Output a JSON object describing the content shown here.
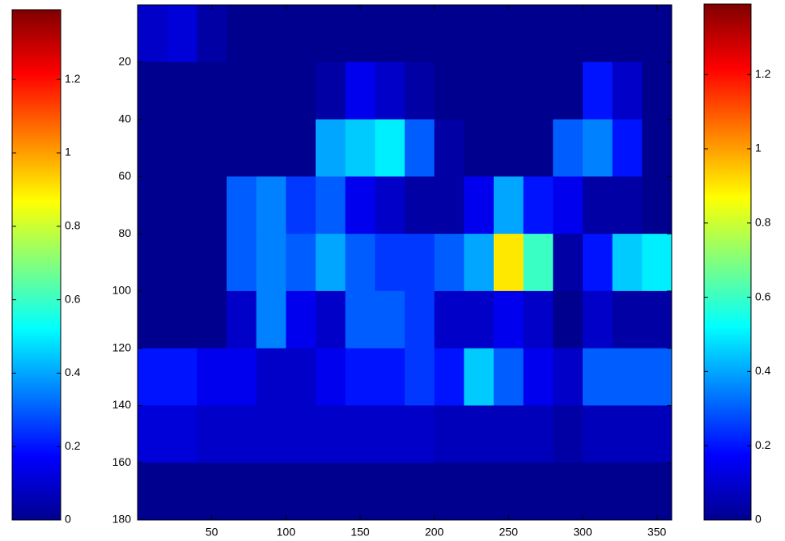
{
  "chart_data": {
    "type": "heatmap",
    "colormap": "jet",
    "xlim": [
      0,
      360
    ],
    "ylim": [
      0,
      180
    ],
    "y_reversed": true,
    "xticks": [
      50,
      100,
      150,
      200,
      250,
      300,
      350
    ],
    "yticks": [
      20,
      40,
      60,
      80,
      100,
      120,
      140,
      160,
      180
    ],
    "z": [
      [
        0.1,
        0.12,
        0.05,
        0.02,
        0.02,
        0.02,
        0.02,
        0.02,
        0.02,
        0.02,
        0.02,
        0.02,
        0.02,
        0.02,
        0.02,
        0.02,
        0.02,
        0.02
      ],
      [
        0.02,
        0.02,
        0.02,
        0.02,
        0.02,
        0.02,
        0.05,
        0.15,
        0.1,
        0.05,
        0.02,
        0.02,
        0.02,
        0.02,
        0.02,
        0.2,
        0.1,
        0.02
      ],
      [
        0.02,
        0.02,
        0.02,
        0.02,
        0.02,
        0.02,
        0.4,
        0.45,
        0.5,
        0.3,
        0.05,
        0.02,
        0.02,
        0.02,
        0.3,
        0.35,
        0.2,
        0.02
      ],
      [
        0.02,
        0.02,
        0.02,
        0.3,
        0.35,
        0.25,
        0.3,
        0.15,
        0.1,
        0.05,
        0.05,
        0.15,
        0.4,
        0.2,
        0.15,
        0.05,
        0.05,
        0.02
      ],
      [
        0.02,
        0.02,
        0.02,
        0.3,
        0.35,
        0.3,
        0.4,
        0.3,
        0.25,
        0.25,
        0.3,
        0.4,
        0.9,
        0.6,
        0.05,
        0.2,
        0.45,
        0.5
      ],
      [
        0.02,
        0.02,
        0.02,
        0.1,
        0.35,
        0.15,
        0.1,
        0.3,
        0.3,
        0.25,
        0.1,
        0.1,
        0.15,
        0.1,
        0.02,
        0.1,
        0.05,
        0.05
      ],
      [
        0.2,
        0.2,
        0.15,
        0.15,
        0.1,
        0.1,
        0.15,
        0.2,
        0.2,
        0.25,
        0.2,
        0.45,
        0.3,
        0.15,
        0.1,
        0.3,
        0.3,
        0.3
      ],
      [
        0.12,
        0.12,
        0.1,
        0.1,
        0.1,
        0.1,
        0.1,
        0.1,
        0.1,
        0.1,
        0.08,
        0.08,
        0.08,
        0.08,
        0.05,
        0.08,
        0.08,
        0.08
      ],
      [
        0.02,
        0.02,
        0.02,
        0.02,
        0.02,
        0.02,
        0.02,
        0.02,
        0.02,
        0.02,
        0.02,
        0.02,
        0.02,
        0.02,
        0.02,
        0.02,
        0.02,
        0.02
      ]
    ],
    "colorbars": [
      {
        "clim": [
          0,
          1.39
        ],
        "ticks": [
          0,
          0.2,
          0.4,
          0.6,
          0.8,
          1,
          1.2
        ]
      },
      {
        "clim": [
          0,
          1.39
        ],
        "ticks": [
          0,
          0.2,
          0.4,
          0.6,
          0.8,
          1,
          1.2
        ]
      }
    ]
  }
}
